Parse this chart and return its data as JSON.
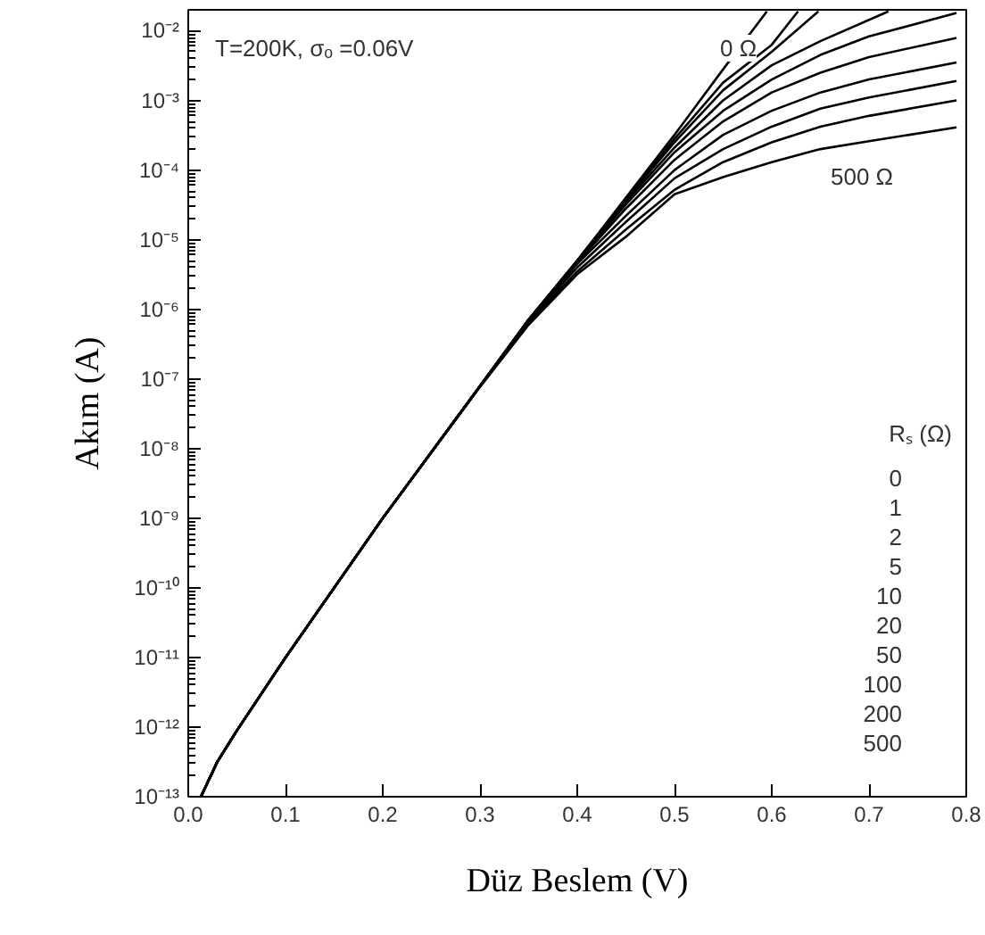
{
  "chart_data": {
    "type": "line",
    "xlabel": "Düz Beslem (V)",
    "ylabel": "Akım (A)",
    "log": "y",
    "grid": false,
    "line_style": "solid",
    "xlim": [
      0.0,
      0.8
    ],
    "ylim": [
      1e-13,
      0.02
    ],
    "xticks": [
      {
        "value": 0.0,
        "label": "0.0"
      },
      {
        "value": 0.1,
        "label": "0.1"
      },
      {
        "value": 0.2,
        "label": "0.2"
      },
      {
        "value": 0.3,
        "label": "0.3"
      },
      {
        "value": 0.4,
        "label": "0.4"
      },
      {
        "value": 0.5,
        "label": "0.5"
      },
      {
        "value": 0.6,
        "label": "0.6"
      },
      {
        "value": 0.7,
        "label": "0.7"
      },
      {
        "value": 0.8,
        "label": "0.8"
      }
    ],
    "yticks": [
      {
        "value": 1e-13,
        "label": "10⁻¹³"
      },
      {
        "value": 1e-12,
        "label": "10⁻¹²"
      },
      {
        "value": 1e-11,
        "label": "10⁻¹¹"
      },
      {
        "value": 1e-10,
        "label": "10⁻¹⁰"
      },
      {
        "value": 1e-09,
        "label": "10⁻⁹"
      },
      {
        "value": 1e-08,
        "label": "10⁻⁸"
      },
      {
        "value": 1e-07,
        "label": "10⁻⁷"
      },
      {
        "value": 1e-06,
        "label": "10⁻⁶"
      },
      {
        "value": 1e-05,
        "label": "10⁻⁵"
      },
      {
        "value": 0.0001,
        "label": "10⁻⁴"
      },
      {
        "value": 0.001,
        "label": "10⁻³"
      },
      {
        "value": 0.01,
        "label": "10⁻²"
      }
    ],
    "series": [
      {
        "color": "#000000",
        "x": [
          0.013,
          0.03,
          0.05,
          0.1,
          0.2,
          0.3,
          0.35,
          0.4,
          0.45,
          0.5,
          0.55,
          0.595
        ],
        "values": [
          1e-13,
          3.2e-13,
          8.9e-13,
          1e-11,
          1e-09,
          7.9e-08,
          7.1e-07,
          5e-06,
          4e-05,
          0.00032,
          0.0028,
          0.019
        ]
      },
      {
        "color": "#000000",
        "x": [
          0.013,
          0.03,
          0.05,
          0.1,
          0.2,
          0.3,
          0.35,
          0.4,
          0.45,
          0.5,
          0.55,
          0.6,
          0.627
        ],
        "values": [
          1e-13,
          3.2e-13,
          8.9e-13,
          1e-11,
          1e-09,
          7.9e-08,
          7.1e-07,
          5e-06,
          3.8e-05,
          0.00028,
          0.0018,
          0.0063,
          0.019
        ]
      },
      {
        "color": "#000000",
        "x": [
          0.013,
          0.03,
          0.05,
          0.1,
          0.2,
          0.3,
          0.35,
          0.4,
          0.45,
          0.5,
          0.55,
          0.6,
          0.648
        ],
        "values": [
          1e-13,
          3.2e-13,
          8.9e-13,
          1e-11,
          1e-09,
          7.9e-08,
          7.1e-07,
          5e-06,
          3.7e-05,
          0.00025,
          0.0014,
          0.005,
          0.019
        ]
      },
      {
        "color": "#000000",
        "x": [
          0.013,
          0.03,
          0.05,
          0.1,
          0.2,
          0.3,
          0.35,
          0.4,
          0.45,
          0.5,
          0.55,
          0.6,
          0.65,
          0.72
        ],
        "values": [
          1e-13,
          3.2e-13,
          8.9e-13,
          1e-11,
          1e-09,
          7.9e-08,
          7.1e-07,
          4.9e-06,
          3.5e-05,
          0.00021,
          0.001,
          0.0032,
          0.0071,
          0.019
        ]
      },
      {
        "color": "#000000",
        "x": [
          0.013,
          0.03,
          0.05,
          0.1,
          0.2,
          0.3,
          0.35,
          0.4,
          0.45,
          0.5,
          0.55,
          0.6,
          0.65,
          0.7,
          0.79
        ],
        "values": [
          1e-13,
          3.2e-13,
          8.9e-13,
          1e-11,
          1e-09,
          7.9e-08,
          7.1e-07,
          4.8e-06,
          3.2e-05,
          0.00018,
          0.00071,
          0.002,
          0.0045,
          0.0083,
          0.018
        ]
      },
      {
        "color": "#000000",
        "x": [
          0.013,
          0.03,
          0.05,
          0.1,
          0.2,
          0.3,
          0.35,
          0.4,
          0.45,
          0.5,
          0.55,
          0.6,
          0.65,
          0.7,
          0.79
        ],
        "values": [
          1e-13,
          3.2e-13,
          8.9e-13,
          1e-11,
          1e-09,
          7.9e-08,
          7.1e-07,
          4.7e-06,
          2.8e-05,
          0.00014,
          0.0005,
          0.0013,
          0.0025,
          0.0042,
          0.0079
        ]
      },
      {
        "color": "#000000",
        "x": [
          0.013,
          0.03,
          0.05,
          0.1,
          0.2,
          0.3,
          0.35,
          0.4,
          0.45,
          0.5,
          0.55,
          0.6,
          0.65,
          0.7,
          0.79
        ],
        "values": [
          1e-13,
          3.2e-13,
          8.9e-13,
          1e-11,
          1e-09,
          7.9e-08,
          7e-07,
          4.5e-06,
          2.2e-05,
          0.0001,
          0.00032,
          0.00071,
          0.0013,
          0.002,
          0.0035
        ]
      },
      {
        "color": "#000000",
        "x": [
          0.013,
          0.03,
          0.05,
          0.1,
          0.2,
          0.3,
          0.35,
          0.4,
          0.45,
          0.5,
          0.55,
          0.6,
          0.65,
          0.7,
          0.79
        ],
        "values": [
          1e-13,
          3.2e-13,
          8.9e-13,
          1e-11,
          1e-09,
          7.9e-08,
          6.8e-07,
          4e-06,
          1.8e-05,
          7.6e-05,
          0.0002,
          0.00042,
          0.00076,
          0.0011,
          0.0019
        ]
      },
      {
        "color": "#000000",
        "x": [
          0.013,
          0.03,
          0.05,
          0.1,
          0.2,
          0.3,
          0.35,
          0.4,
          0.45,
          0.5,
          0.55,
          0.6,
          0.65,
          0.7,
          0.79
        ],
        "values": [
          1e-13,
          3.2e-13,
          8.9e-13,
          1e-11,
          1e-09,
          7.8e-08,
          6.5e-07,
          3.5e-06,
          1.4e-05,
          5.2e-05,
          0.00013,
          0.00025,
          0.00042,
          0.0006,
          0.001
        ]
      },
      {
        "color": "#000000",
        "x": [
          0.013,
          0.03,
          0.05,
          0.1,
          0.2,
          0.3,
          0.35,
          0.4,
          0.45,
          0.5,
          0.55,
          0.6,
          0.65,
          0.7,
          0.79
        ],
        "values": [
          1e-13,
          3.2e-13,
          8.9e-13,
          1e-11,
          1e-09,
          7.7e-08,
          6e-07,
          3.2e-06,
          1.1e-05,
          4.5e-05,
          7.9e-05,
          0.00013,
          0.0002,
          0.00026,
          0.00041
        ]
      }
    ],
    "annotations": [
      "T=200K, σₒ =0.06V",
      "0 Ω",
      "500 Ω",
      "Rₛ (Ω)",
      "0",
      "1",
      "2",
      "5",
      "10",
      "20",
      "50",
      "100",
      "200",
      "500"
    ]
  }
}
